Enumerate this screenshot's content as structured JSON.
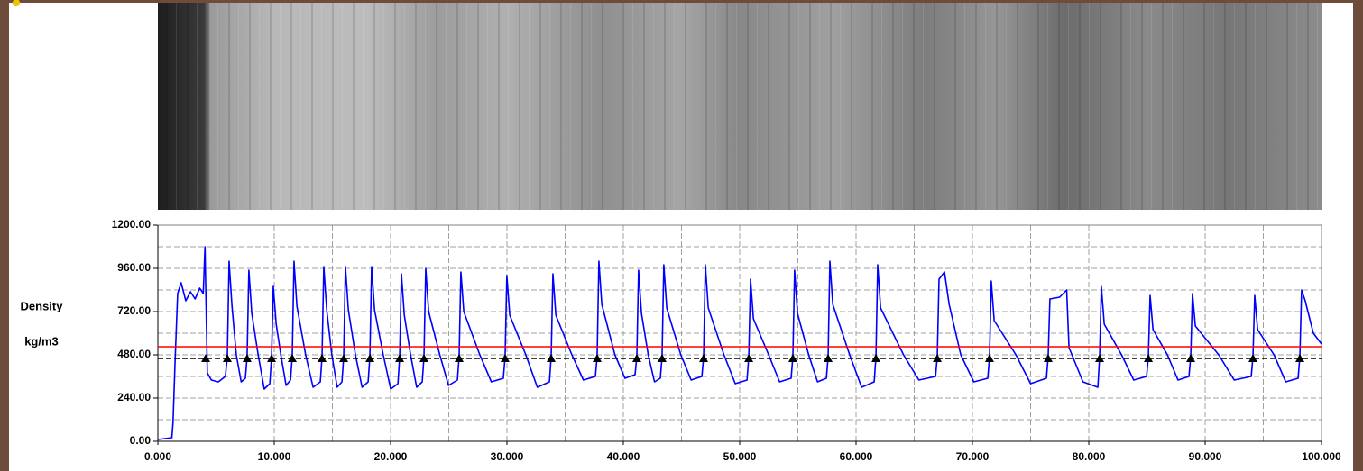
{
  "chart_data": {
    "type": "line",
    "ylabel": "Density",
    "yunit": "kg/m3",
    "xlim": [
      0,
      100
    ],
    "ylim": [
      0,
      1200
    ],
    "xticks": [
      {
        "value": 0,
        "label": "0.000"
      },
      {
        "value": 10,
        "label": "10.000"
      },
      {
        "value": 20,
        "label": "20.000"
      },
      {
        "value": 30,
        "label": "30.000"
      },
      {
        "value": 40,
        "label": "40.000"
      },
      {
        "value": 50,
        "label": "50.000"
      },
      {
        "value": 60,
        "label": "60.000"
      },
      {
        "value": 70,
        "label": "70.000"
      },
      {
        "value": 80,
        "label": "80.000"
      },
      {
        "value": 90,
        "label": "90.000"
      },
      {
        "value": 100,
        "label": "100.000"
      }
    ],
    "yticks": [
      {
        "value": 0,
        "label": "0.00"
      },
      {
        "value": 240,
        "label": "240.00"
      },
      {
        "value": 480,
        "label": "480.00"
      },
      {
        "value": 720,
        "label": "720.00"
      },
      {
        "value": 960,
        "label": "960.00"
      },
      {
        "value": 1200,
        "label": "1200.00"
      }
    ],
    "xminor": [
      5,
      15,
      25,
      35,
      45,
      55,
      65,
      75,
      85,
      95
    ],
    "yminor": [
      120,
      360,
      600,
      840,
      1080
    ],
    "grid": true,
    "reference_lines": [
      {
        "value": 525,
        "color": "#ff0000",
        "dashed": false
      },
      {
        "value": 460,
        "color": "#000000",
        "dashed": true
      }
    ],
    "markers": {
      "color": "#000000",
      "x": [
        4.11,
        5.97,
        7.67,
        9.77,
        11.55,
        14.11,
        15.97,
        18.22,
        20.78,
        22.87,
        25.89,
        29.84,
        33.8,
        37.75,
        41.16,
        43.33,
        46.9,
        50.78,
        54.57,
        57.6,
        61.71,
        66.98,
        71.47,
        76.51,
        80.93,
        85.12,
        88.76,
        94.11,
        98.14
      ]
    },
    "series": [
      {
        "color": "#0000ff",
        "x": [
          0,
          1.2,
          1.3,
          1.5,
          1.7,
          2.0,
          2.4,
          2.8,
          3.2,
          3.6,
          3.9,
          4.05,
          4.25,
          4.6,
          5.2,
          5.8,
          5.97,
          6.12,
          6.37,
          6.74,
          7.16,
          7.52,
          7.67,
          7.82,
          8.07,
          8.62,
          9.14,
          9.62,
          9.77,
          9.92,
          10.17,
          10.57,
          11.02,
          11.4,
          11.55,
          11.7,
          11.95,
          12.7,
          13.34,
          13.96,
          14.11,
          14.26,
          14.51,
          14.95,
          15.41,
          15.82,
          15.97,
          16.12,
          16.37,
          16.98,
          17.55,
          18.07,
          18.22,
          18.37,
          18.62,
          19.37,
          20.01,
          20.63,
          20.78,
          20.93,
          21.18,
          21.72,
          22.24,
          22.72,
          22.87,
          23.02,
          23.27,
          24.23,
          24.98,
          25.74,
          25.89,
          26.04,
          26.29,
          27.67,
          28.66,
          29.69,
          29.84,
          29.99,
          30.24,
          31.62,
          32.61,
          33.65,
          33.8,
          33.95,
          34.2,
          35.58,
          36.57,
          37.6,
          37.75,
          37.9,
          38.15,
          39.28,
          40.14,
          41.01,
          41.16,
          41.31,
          41.56,
          42.14,
          42.68,
          43.18,
          43.33,
          43.48,
          43.73,
          44.94,
          45.83,
          46.75,
          46.9,
          47.05,
          47.3,
          48.65,
          49.62,
          50.63,
          50.78,
          50.93,
          51.18,
          52.49,
          53.43,
          54.42,
          54.57,
          54.72,
          54.97,
          55.93,
          56.69,
          57.45,
          57.6,
          57.75,
          58.0,
          59.45,
          60.48,
          61.56,
          61.71,
          61.86,
          62.11,
          64.08,
          65.4,
          66.83,
          66.98,
          67.13,
          67.6,
          68.0,
          69.0,
          70.12,
          71.32,
          71.47,
          71.62,
          71.87,
          73.74,
          75.0,
          76.36,
          76.51,
          76.66,
          77.5,
          78.1,
          78.3,
          79.5,
          80.78,
          80.93,
          81.08,
          81.33,
          82.82,
          83.86,
          84.97,
          85.12,
          85.27,
          85.52,
          86.76,
          87.67,
          88.61,
          88.76,
          88.91,
          89.16,
          91.17,
          92.5,
          93.96,
          94.11,
          94.26,
          94.51,
          95.92,
          96.93,
          97.99,
          98.14,
          98.29,
          98.6,
          99.3,
          100
        ],
        "values": [
          10,
          20,
          100,
          480,
          820,
          880,
          780,
          830,
          790,
          850,
          820,
          1080,
          380,
          340,
          330,
          360,
          470,
          1000,
          750,
          480,
          330,
          350,
          470,
          950,
          710,
          480,
          290,
          320,
          470,
          860,
          650,
          480,
          310,
          340,
          470,
          1000,
          750,
          480,
          300,
          330,
          470,
          970,
          730,
          480,
          300,
          330,
          470,
          970,
          730,
          480,
          300,
          330,
          470,
          970,
          730,
          480,
          290,
          320,
          470,
          930,
          700,
          480,
          300,
          330,
          470,
          960,
          720,
          480,
          310,
          340,
          470,
          940,
          720,
          480,
          330,
          350,
          470,
          920,
          700,
          480,
          300,
          330,
          470,
          930,
          700,
          480,
          340,
          360,
          470,
          1000,
          760,
          480,
          350,
          370,
          470,
          950,
          710,
          480,
          330,
          350,
          470,
          980,
          740,
          480,
          340,
          360,
          470,
          980,
          740,
          480,
          320,
          340,
          470,
          900,
          680,
          480,
          330,
          350,
          470,
          950,
          710,
          480,
          330,
          350,
          470,
          1000,
          760,
          480,
          300,
          330,
          470,
          980,
          740,
          480,
          340,
          360,
          470,
          900,
          940,
          760,
          480,
          330,
          350,
          470,
          890,
          670,
          480,
          320,
          350,
          470,
          790,
          800,
          840,
          520,
          330,
          300,
          470,
          860,
          650,
          480,
          340,
          360,
          470,
          810,
          620,
          480,
          340,
          360,
          470,
          820,
          640,
          480,
          340,
          360,
          470,
          810,
          620,
          480,
          330,
          350,
          470,
          840,
          780,
          600,
          540
        ]
      }
    ]
  }
}
